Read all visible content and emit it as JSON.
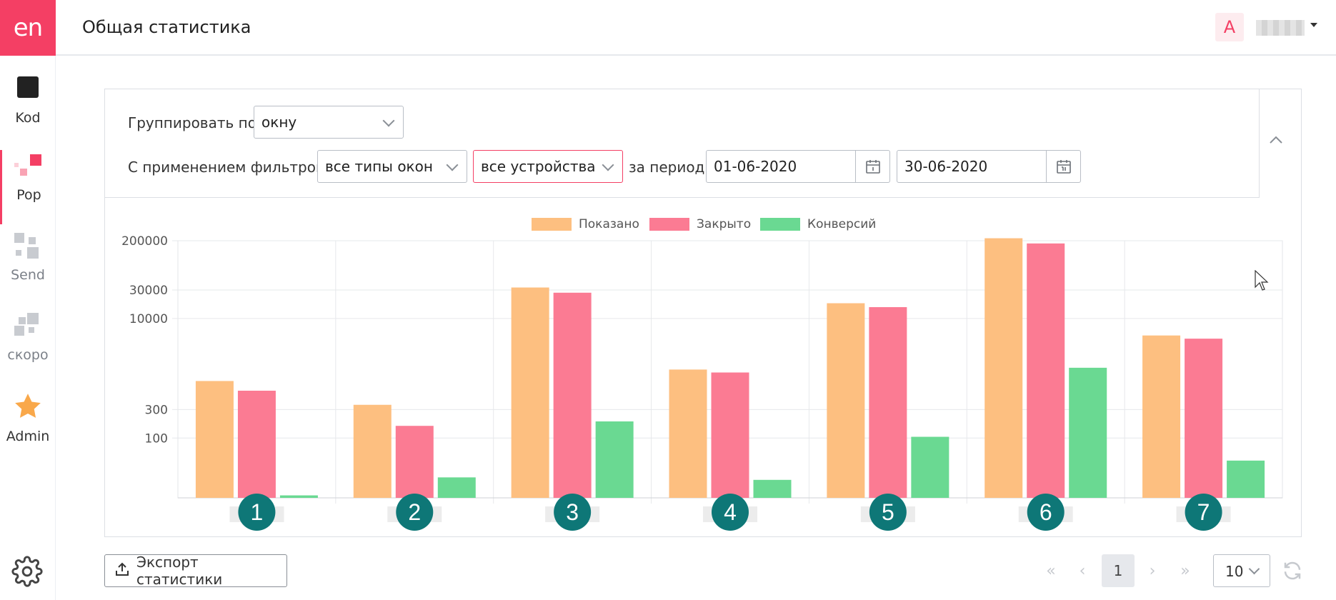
{
  "sidebar": {
    "logo": "en",
    "items": [
      {
        "label": "Kod"
      },
      {
        "label": "Pop"
      },
      {
        "label": "Send"
      },
      {
        "label": "скоро"
      },
      {
        "label": "Admin"
      }
    ]
  },
  "header": {
    "title": "Общая статистика",
    "avatar": "A"
  },
  "filters": {
    "group_label": "Группировать по",
    "group_value": "окну",
    "filter_label": "С применением фильтров",
    "window_types": "все типы окон",
    "devices": "все устройства",
    "period_label": "за период",
    "date_from": "01-06-2020",
    "date_to": "30-06-2020"
  },
  "colors": {
    "accent": "#f43f64",
    "shown": "#fdbf80",
    "closed": "#fb7b93",
    "conversions": "#6ad992",
    "badge": "#0e7777"
  },
  "chart_data": {
    "type": "bar",
    "scale": "log",
    "categories": [
      "1",
      "2",
      "3",
      "4",
      "5",
      "6",
      "7"
    ],
    "series": [
      {
        "name": "Показано",
        "values": [
          900,
          360,
          33000,
          1400,
          18000,
          220000,
          5200
        ]
      },
      {
        "name": "Закрыто",
        "values": [
          620,
          160,
          27000,
          1250,
          15500,
          180000,
          4600
        ]
      },
      {
        "name": "Конверсий",
        "values": [
          11,
          22,
          190,
          20,
          105,
          1500,
          42
        ]
      }
    ],
    "yticks": [
      "200000",
      "30000",
      "10000",
      "300",
      "100"
    ],
    "ytick_values": [
      200000,
      30000,
      10000,
      300,
      100
    ],
    "ylim": [
      10,
      200000
    ],
    "grid": true,
    "legend_position": "top-center"
  },
  "footer": {
    "export_label": "Экспорт статистики",
    "first": "«",
    "prev": "‹",
    "page": "1",
    "next": "›",
    "last": "»",
    "per_page": "10"
  }
}
